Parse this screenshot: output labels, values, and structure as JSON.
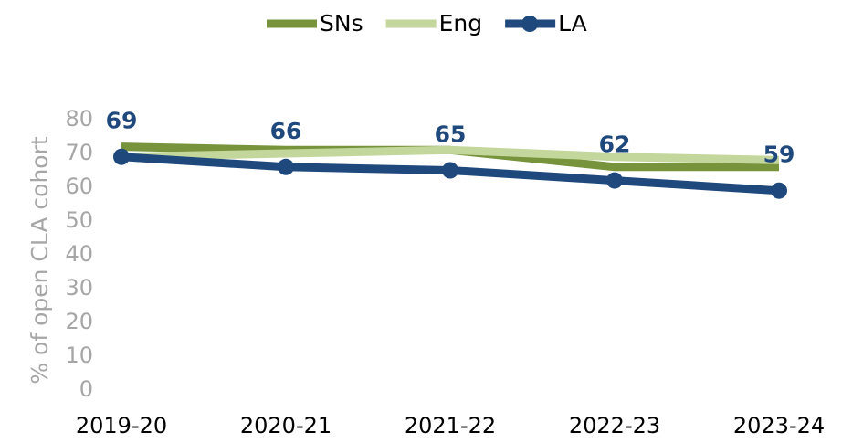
{
  "chart_data": {
    "type": "line",
    "y_label": "% of open CLA cohort",
    "categories": [
      "2019-20",
      "2020-21",
      "2021-22",
      "2022-23",
      "2023-24"
    ],
    "series": [
      {
        "name": "SNs",
        "color": "#77933c",
        "values": [
          72,
          71,
          71,
          66,
          66
        ]
      },
      {
        "name": "Eng",
        "color": "#c3d69b",
        "values": [
          69,
          70,
          71,
          69,
          68
        ]
      },
      {
        "name": "LA",
        "color": "#1f497d",
        "values": [
          69,
          66,
          65,
          62,
          59
        ],
        "markers": true,
        "data_labels": true
      }
    ],
    "ylim": [
      0,
      80
    ],
    "yticks": [
      0,
      10,
      20,
      30,
      40,
      50,
      60,
      70,
      80
    ],
    "grid": false,
    "legend": "top"
  }
}
